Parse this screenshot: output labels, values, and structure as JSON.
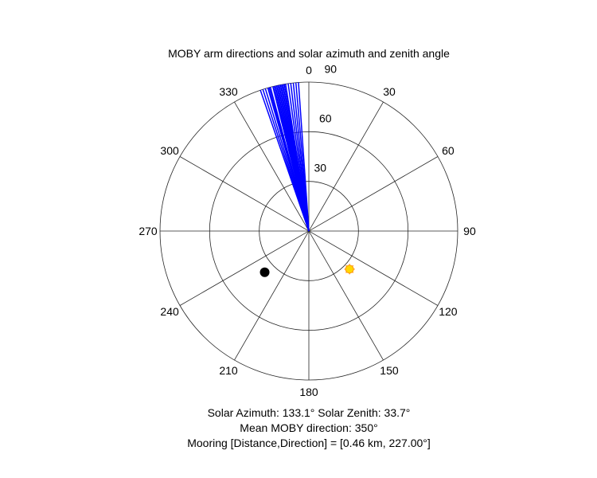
{
  "chart_data": {
    "type": "polar",
    "title": "MOBY arm directions and solar azimuth and zenith angle",
    "theta_zero": "top",
    "theta_direction": "clockwise",
    "theta_ticks": [
      0,
      30,
      60,
      90,
      120,
      150,
      180,
      210,
      240,
      270,
      300,
      330
    ],
    "r_ticks": [
      30,
      60,
      90
    ],
    "r_lim": [
      0,
      90
    ],
    "grid": true,
    "series": [
      {
        "kind": "radial_lines",
        "color": "#0000ff",
        "theta_deg": [
          341,
          342,
          343,
          344,
          344.5,
          345,
          346,
          346.5,
          347,
          347.5,
          348,
          348.5,
          349,
          349.5,
          350,
          350.5,
          351,
          352,
          353,
          354,
          355,
          356
        ],
        "r": 90
      },
      {
        "kind": "point",
        "marker": "sun",
        "color": "#ffd700",
        "edge_color": "#ff8c00",
        "theta_deg": 133.1,
        "r": 33.7
      },
      {
        "kind": "point",
        "marker": "filled_circle",
        "color": "#000000",
        "theta_deg": 227,
        "r": 36.5
      }
    ],
    "annotations": [
      "Solar Azimuth: 133.1°    Solar Zenith: 33.7°",
      "Mean MOBY direction: 350°",
      "Mooring [Distance,Direction] = [0.46 km, 227.00°]"
    ]
  }
}
